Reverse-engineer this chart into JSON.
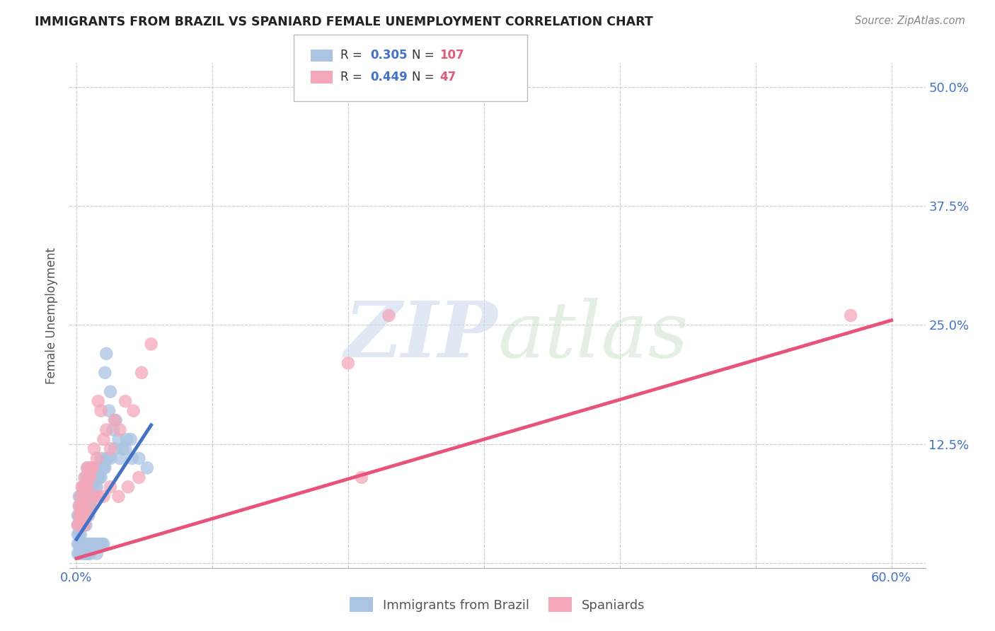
{
  "title": "IMMIGRANTS FROM BRAZIL VS SPANIARD FEMALE UNEMPLOYMENT CORRELATION CHART",
  "source": "Source: ZipAtlas.com",
  "ylabel": "Female Unemployment",
  "xlim": [
    0.0,
    0.6
  ],
  "ylim": [
    0.0,
    0.52
  ],
  "xtick_pos": [
    0.0,
    0.1,
    0.2,
    0.3,
    0.4,
    0.5,
    0.6
  ],
  "xtick_labels": [
    "0.0%",
    "",
    "",
    "",
    "",
    "",
    "60.0%"
  ],
  "ytick_pos": [
    0.0,
    0.125,
    0.25,
    0.375,
    0.5
  ],
  "ytick_labels": [
    "",
    "12.5%",
    "25.0%",
    "37.5%",
    "50.0%"
  ],
  "series1_label": "Immigrants from Brazil",
  "series1_color": "#aac4e2",
  "series1_R": 0.305,
  "series1_N": 107,
  "series1_line_color": "#4472c4",
  "series2_label": "Spaniards",
  "series2_color": "#f4a7b9",
  "series2_R": 0.449,
  "series2_N": 47,
  "series2_line_color": "#e8537a",
  "legend_val_color": "#4472c4",
  "legend_n_color": "#e05a7a",
  "brazil_x": [
    0.001,
    0.001,
    0.001,
    0.002,
    0.002,
    0.002,
    0.002,
    0.002,
    0.003,
    0.003,
    0.003,
    0.003,
    0.003,
    0.004,
    0.004,
    0.004,
    0.004,
    0.005,
    0.005,
    0.005,
    0.005,
    0.006,
    0.006,
    0.006,
    0.006,
    0.007,
    0.007,
    0.007,
    0.007,
    0.007,
    0.008,
    0.008,
    0.008,
    0.008,
    0.009,
    0.009,
    0.009,
    0.01,
    0.01,
    0.01,
    0.011,
    0.011,
    0.011,
    0.012,
    0.012,
    0.013,
    0.013,
    0.014,
    0.014,
    0.015,
    0.015,
    0.016,
    0.017,
    0.018,
    0.018,
    0.019,
    0.02,
    0.021,
    0.022,
    0.023,
    0.001,
    0.001,
    0.002,
    0.002,
    0.003,
    0.003,
    0.004,
    0.004,
    0.005,
    0.005,
    0.006,
    0.006,
    0.007,
    0.007,
    0.008,
    0.008,
    0.009,
    0.009,
    0.01,
    0.01,
    0.011,
    0.012,
    0.013,
    0.014,
    0.015,
    0.016,
    0.017,
    0.018,
    0.019,
    0.02,
    0.021,
    0.022,
    0.024,
    0.025,
    0.027,
    0.029,
    0.031,
    0.034,
    0.037,
    0.04,
    0.025,
    0.028,
    0.032,
    0.036,
    0.041,
    0.046,
    0.052
  ],
  "brazil_y": [
    0.03,
    0.04,
    0.05,
    0.03,
    0.04,
    0.05,
    0.06,
    0.07,
    0.03,
    0.04,
    0.05,
    0.06,
    0.07,
    0.04,
    0.05,
    0.06,
    0.07,
    0.04,
    0.05,
    0.06,
    0.07,
    0.04,
    0.05,
    0.06,
    0.08,
    0.04,
    0.05,
    0.06,
    0.07,
    0.09,
    0.05,
    0.06,
    0.07,
    0.1,
    0.05,
    0.06,
    0.08,
    0.06,
    0.07,
    0.08,
    0.06,
    0.08,
    0.1,
    0.07,
    0.09,
    0.07,
    0.09,
    0.08,
    0.1,
    0.08,
    0.1,
    0.09,
    0.09,
    0.09,
    0.11,
    0.1,
    0.1,
    0.1,
    0.11,
    0.11,
    0.02,
    0.01,
    0.02,
    0.01,
    0.02,
    0.01,
    0.02,
    0.01,
    0.02,
    0.01,
    0.02,
    0.01,
    0.02,
    0.01,
    0.02,
    0.01,
    0.02,
    0.01,
    0.02,
    0.01,
    0.02,
    0.02,
    0.02,
    0.02,
    0.01,
    0.02,
    0.02,
    0.02,
    0.02,
    0.02,
    0.2,
    0.22,
    0.16,
    0.18,
    0.14,
    0.15,
    0.13,
    0.12,
    0.13,
    0.13,
    0.11,
    0.12,
    0.11,
    0.12,
    0.11,
    0.11,
    0.1
  ],
  "spaniard_x": [
    0.001,
    0.002,
    0.002,
    0.003,
    0.003,
    0.004,
    0.004,
    0.005,
    0.005,
    0.006,
    0.006,
    0.007,
    0.008,
    0.008,
    0.009,
    0.01,
    0.011,
    0.012,
    0.013,
    0.015,
    0.016,
    0.018,
    0.02,
    0.022,
    0.025,
    0.028,
    0.032,
    0.036,
    0.042,
    0.048,
    0.055,
    0.003,
    0.004,
    0.006,
    0.008,
    0.01,
    0.013,
    0.016,
    0.02,
    0.025,
    0.031,
    0.038,
    0.046,
    0.2,
    0.21,
    0.23,
    0.57
  ],
  "spaniard_y": [
    0.04,
    0.05,
    0.06,
    0.05,
    0.07,
    0.06,
    0.08,
    0.06,
    0.08,
    0.07,
    0.09,
    0.08,
    0.08,
    0.1,
    0.09,
    0.09,
    0.1,
    0.1,
    0.12,
    0.11,
    0.17,
    0.16,
    0.13,
    0.14,
    0.12,
    0.15,
    0.14,
    0.17,
    0.16,
    0.2,
    0.23,
    0.04,
    0.05,
    0.04,
    0.05,
    0.06,
    0.07,
    0.07,
    0.07,
    0.08,
    0.07,
    0.08,
    0.09,
    0.21,
    0.09,
    0.26,
    0.26
  ],
  "brazil_line_x": [
    0.0,
    0.055
  ],
  "brazil_line_y_start": 0.025,
  "brazil_line_y_end": 0.145,
  "spaniard_line_x": [
    0.0,
    0.6
  ],
  "spaniard_line_y_start": 0.005,
  "spaniard_line_y_end": 0.255
}
